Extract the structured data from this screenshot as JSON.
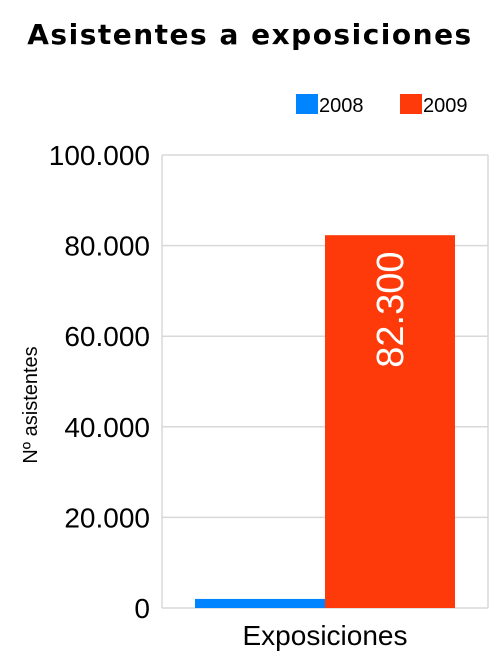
{
  "chart_data": {
    "type": "bar",
    "title": "Asistentes a exposiciones",
    "xlabel": "",
    "ylabel": "Nº asistentes",
    "categories": [
      "Exposiciones"
    ],
    "series": [
      {
        "name": "2008",
        "values": [
          2000
        ],
        "color": "#0084ff"
      },
      {
        "name": "2009",
        "values": [
          82300
        ],
        "color": "#ff3a0a",
        "data_label": "82.300"
      }
    ],
    "ylim": [
      0,
      100000
    ],
    "yticks": [
      "0",
      "20.000",
      "40.000",
      "60.000",
      "80.000",
      "100.000"
    ],
    "grid": true,
    "legend_position": "top-right"
  }
}
